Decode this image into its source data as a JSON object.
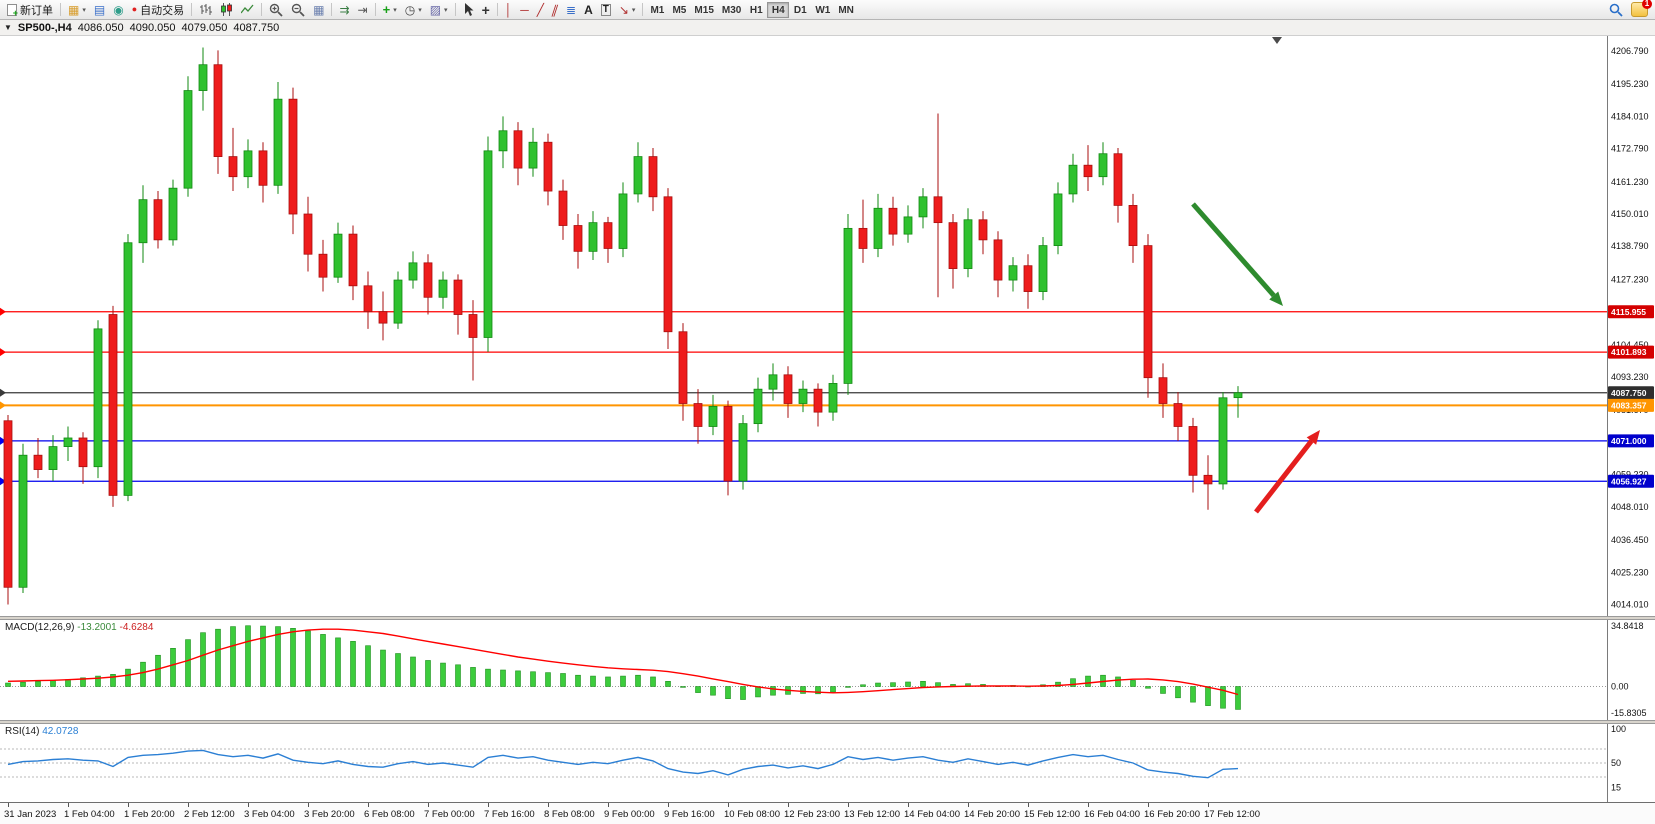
{
  "toolbar": {
    "new_order_label": "新订单",
    "autotrading_label": "自动交易",
    "timeframes": {
      "items": [
        "M1",
        "M5",
        "M15",
        "M30",
        "H1",
        "H4",
        "D1",
        "W1",
        "MN"
      ],
      "active": "H4"
    },
    "notification_badge": "1"
  },
  "icons": {
    "window_menu": "▼",
    "chart_window": "▦",
    "market_watch": "▤",
    "navigator": "◉",
    "autotrading_status": "●",
    "tile_windows": "▦",
    "auto_scroll": "⇉",
    "chart_shift": "⇥",
    "indicators_add": "+",
    "periods_clock": "◷",
    "templates": "▨",
    "crosshair": "+",
    "vertical_line": "│",
    "horizontal_line": "─",
    "trendline": "╱",
    "channel": "∥",
    "fibonacci": "≣",
    "text_tool": "A",
    "text_label": "T",
    "arrows_tool": "↘",
    "dropdown": "▾",
    "shift_marker": "▼"
  },
  "chart_header": {
    "symbol_period": "SP500-,H4",
    "open": "4086.050",
    "high": "4090.050",
    "low": "4079.050",
    "close": "4087.750"
  },
  "colors": {
    "bull": "#2fc12f",
    "bull_stroke": "#128912",
    "bear": "#ee1c1c",
    "bear_stroke": "#a80f0f",
    "macd_hist": "#3ccc3c",
    "macd_hist_stroke": "#1e8f1e",
    "macd_signal": "#ff0000",
    "rsi_line": "#2b7fd4",
    "axis_text": "#111111"
  },
  "levels": [
    {
      "price": 4115.955,
      "label": "4115.955",
      "color": "#ff0000",
      "badge": "#d40000",
      "width": 1.2
    },
    {
      "price": 4101.893,
      "label": "4101.893",
      "color": "#ff0000",
      "badge": "#d40000",
      "width": 1.2
    },
    {
      "price": 4087.75,
      "label": "4087.750",
      "color": "#3a3a3a",
      "badge": "#2e2e2e",
      "width": 1.2
    },
    {
      "price": 4083.357,
      "label": "4083.357",
      "color": "#ff9500",
      "badge": "#ff9500",
      "width": 2
    },
    {
      "price": 4071.0,
      "label": "4071.000",
      "color": "#0000ee",
      "badge": "#0000cc",
      "width": 1.3
    },
    {
      "price": 4056.927,
      "label": "4056.927",
      "color": "#0000ee",
      "badge": "#0000cc",
      "width": 1.3
    }
  ],
  "annotations": [
    {
      "name": "green-down-arrow",
      "color": "#2e8b2e",
      "from": [
        1193,
        168
      ],
      "to": [
        1283,
        270
      ]
    },
    {
      "name": "red-up-arrow",
      "color": "#e41e1e",
      "from": [
        1256,
        476
      ],
      "to": [
        1320,
        394
      ]
    }
  ],
  "shift_marker_x": 1277,
  "time_axis": {
    "labels": [
      "31 Jan 2023",
      "1 Feb 04:00",
      "1 Feb 20:00",
      "2 Feb 12:00",
      "3 Feb 04:00",
      "3 Feb 20:00",
      "6 Feb 08:00",
      "7 Feb 00:00",
      "7 Feb 16:00",
      "8 Feb 08:00",
      "9 Feb 00:00",
      "9 Feb 16:00",
      "10 Feb 08:00",
      "12 Feb 23:00",
      "13 Feb 12:00",
      "14 Feb 04:00",
      "14 Feb 20:00",
      "15 Feb 12:00",
      "16 Feb 04:00",
      "16 Feb 20:00",
      "17 Feb 12:00"
    ],
    "bars_per_label": 4
  },
  "indicators": {
    "macd": {
      "name": "MACD(12,26,9)",
      "value1": "-13.2001",
      "value2": "-4.6284",
      "axis": [
        "34.8418",
        "0.00",
        "-15.8305"
      ]
    },
    "rsi": {
      "name": "RSI(14)",
      "value": "42.0728",
      "axis": [
        "100",
        "50",
        "15"
      ],
      "levels": [
        70,
        50,
        30
      ]
    }
  },
  "chart_data": [
    {
      "type": "candlestick",
      "name": "SP500- H4",
      "y_range": [
        4010,
        4212
      ],
      "first_x": 8,
      "bar_spacing": 15,
      "axis_ticks": [
        "4206.790",
        "4195.230",
        "4184.010",
        "4172.790",
        "4161.230",
        "4150.010",
        "4138.790",
        "4127.230",
        "4115.670",
        "4104.450",
        "4093.230",
        "4081.670",
        "4070.450",
        "4059.230",
        "4048.010",
        "4036.450",
        "4025.230",
        "4014.010"
      ],
      "candles": [
        [
          4078,
          4080,
          4014,
          4020
        ],
        [
          4020,
          4070,
          4018,
          4066
        ],
        [
          4066,
          4072,
          4058,
          4061
        ],
        [
          4061,
          4073,
          4057,
          4069
        ],
        [
          4069,
          4076,
          4064,
          4072
        ],
        [
          4072,
          4074,
          4056,
          4062
        ],
        [
          4062,
          4113,
          4058,
          4110
        ],
        [
          4115,
          4118,
          4048,
          4052
        ],
        [
          4052,
          4143,
          4050,
          4140
        ],
        [
          4140,
          4160,
          4133,
          4155
        ],
        [
          4155,
          4158,
          4138,
          4141
        ],
        [
          4141,
          4162,
          4139,
          4159
        ],
        [
          4159,
          4198,
          4156,
          4193
        ],
        [
          4193,
          4208,
          4186,
          4202
        ],
        [
          4202,
          4207,
          4164,
          4170
        ],
        [
          4170,
          4180,
          4158,
          4163
        ],
        [
          4163,
          4176,
          4159,
          4172
        ],
        [
          4172,
          4175,
          4154,
          4160
        ],
        [
          4160,
          4196,
          4157,
          4190
        ],
        [
          4190,
          4194,
          4143,
          4150
        ],
        [
          4150,
          4156,
          4130,
          4136
        ],
        [
          4136,
          4141,
          4123,
          4128
        ],
        [
          4128,
          4147,
          4126,
          4143
        ],
        [
          4143,
          4146,
          4120,
          4125
        ],
        [
          4125,
          4130,
          4110,
          4116
        ],
        [
          4116,
          4123,
          4106,
          4112
        ],
        [
          4112,
          4130,
          4110,
          4127
        ],
        [
          4127,
          4137,
          4124,
          4133
        ],
        [
          4133,
          4136,
          4115,
          4121
        ],
        [
          4121,
          4130,
          4117,
          4127
        ],
        [
          4127,
          4129,
          4108,
          4115
        ],
        [
          4115,
          4120,
          4092,
          4107
        ],
        [
          4107,
          4177,
          4102,
          4172
        ],
        [
          4172,
          4184,
          4166,
          4179
        ],
        [
          4179,
          4182,
          4160,
          4166
        ],
        [
          4166,
          4180,
          4163,
          4175
        ],
        [
          4175,
          4178,
          4153,
          4158
        ],
        [
          4158,
          4162,
          4141,
          4146
        ],
        [
          4146,
          4150,
          4131,
          4137
        ],
        [
          4137,
          4151,
          4134,
          4147
        ],
        [
          4147,
          4149,
          4133,
          4138
        ],
        [
          4138,
          4161,
          4135,
          4157
        ],
        [
          4157,
          4175,
          4154,
          4170
        ],
        [
          4170,
          4173,
          4151,
          4156
        ],
        [
          4156,
          4159,
          4103,
          4109
        ],
        [
          4109,
          4112,
          4078,
          4084
        ],
        [
          4084,
          4089,
          4070,
          4076
        ],
        [
          4076,
          4087,
          4073,
          4083
        ],
        [
          4083,
          4085,
          4052,
          4057
        ],
        [
          4057,
          4080,
          4054,
          4077
        ],
        [
          4077,
          4093,
          4074,
          4089
        ],
        [
          4089,
          4098,
          4085,
          4094
        ],
        [
          4094,
          4097,
          4079,
          4084
        ],
        [
          4084,
          4092,
          4081,
          4089
        ],
        [
          4089,
          4091,
          4076,
          4081
        ],
        [
          4081,
          4094,
          4078,
          4091
        ],
        [
          4091,
          4150,
          4087,
          4145
        ],
        [
          4145,
          4155,
          4133,
          4138
        ],
        [
          4138,
          4157,
          4135,
          4152
        ],
        [
          4152,
          4156,
          4139,
          4143
        ],
        [
          4143,
          4153,
          4140,
          4149
        ],
        [
          4149,
          4159,
          4145,
          4156
        ],
        [
          4156,
          4185,
          4121,
          4147
        ],
        [
          4147,
          4150,
          4124,
          4131
        ],
        [
          4131,
          4152,
          4128,
          4148
        ],
        [
          4148,
          4151,
          4136,
          4141
        ],
        [
          4141,
          4144,
          4121,
          4127
        ],
        [
          4127,
          4135,
          4123,
          4132
        ],
        [
          4132,
          4136,
          4117,
          4123
        ],
        [
          4123,
          4142,
          4120,
          4139
        ],
        [
          4139,
          4161,
          4136,
          4157
        ],
        [
          4157,
          4171,
          4154,
          4167
        ],
        [
          4167,
          4174,
          4158,
          4163
        ],
        [
          4163,
          4175,
          4160,
          4171
        ],
        [
          4171,
          4173,
          4147,
          4153
        ],
        [
          4153,
          4157,
          4133,
          4139
        ],
        [
          4139,
          4143,
          4086,
          4093
        ],
        [
          4093,
          4098,
          4079,
          4084
        ],
        [
          4084,
          4088,
          4071,
          4076
        ],
        [
          4076,
          4079,
          4053,
          4059
        ],
        [
          4059,
          4066,
          4047,
          4056
        ],
        [
          4056,
          4088,
          4054,
          4086
        ],
        [
          4086.05,
          4090.05,
          4079.05,
          4087.75
        ]
      ]
    },
    {
      "type": "bar",
      "name": "MACD histogram",
      "y_range": [
        -15.8305,
        34.8418
      ],
      "values": [
        2,
        2.5,
        3,
        3.5,
        4,
        5,
        6,
        7,
        10,
        14,
        18,
        22,
        27,
        31,
        33,
        34.5,
        35,
        34.8,
        34.5,
        33.5,
        32,
        30,
        28,
        26,
        23.5,
        21,
        19,
        17,
        15,
        13.5,
        12.5,
        11,
        10,
        9.5,
        9,
        8.5,
        8,
        7.5,
        6.5,
        6,
        5.5,
        6,
        6.5,
        5.5,
        3,
        -0.5,
        -3.5,
        -5,
        -7,
        -7.5,
        -6,
        -5,
        -4.5,
        -4,
        -4.2,
        -3.2,
        -0.5,
        1,
        2,
        2.2,
        2.6,
        3,
        2.2,
        1.2,
        1.6,
        1.2,
        0.4,
        0.6,
        0.2,
        1,
        2.5,
        4.5,
        6,
        6.5,
        5.5,
        3.5,
        -1,
        -4,
        -6.5,
        -9,
        -11,
        -12.5,
        -13.2
      ],
      "signal": [
        3,
        3.2,
        3.4,
        3.6,
        3.9,
        4.3,
        4.8,
        5.5,
        6.5,
        8,
        10,
        12.5,
        15,
        18,
        21,
        23.5,
        26,
        28,
        30,
        31.5,
        32.5,
        33,
        33,
        32.5,
        31.5,
        30.5,
        29,
        27.5,
        26,
        24.5,
        23,
        21.5,
        20,
        18.5,
        17,
        15.8,
        14.6,
        13.5,
        12.5,
        11.6,
        10.8,
        10.2,
        9.8,
        9.4,
        8.6,
        7.4,
        6,
        4.4,
        2.8,
        1.2,
        -0.2,
        -1.4,
        -2.2,
        -2.8,
        -3.3,
        -3.6,
        -3.4,
        -3,
        -2.4,
        -1.8,
        -1.2,
        -0.6,
        -0.2,
        0,
        0.2,
        0.3,
        0.3,
        0.3,
        0.2,
        0.3,
        0.6,
        1.2,
        2,
        2.9,
        3.7,
        4.2,
        4.3,
        3.8,
        2.8,
        1.4,
        -0.4,
        -2.2,
        -4.6
      ]
    },
    {
      "type": "line",
      "name": "RSI",
      "y_range": [
        0,
        100
      ],
      "values": [
        48,
        52,
        53,
        55,
        56,
        54,
        53,
        45,
        58,
        61,
        62,
        64,
        67,
        68,
        62,
        59,
        61,
        57,
        63,
        54,
        51,
        49,
        53,
        48,
        45,
        44,
        49,
        52,
        48,
        50,
        47,
        44,
        58,
        61,
        57,
        59,
        54,
        51,
        48,
        51,
        49,
        54,
        58,
        53,
        42,
        37,
        35,
        39,
        33,
        41,
        45,
        47,
        43,
        46,
        42,
        48,
        59,
        55,
        58,
        54,
        57,
        59,
        54,
        51,
        56,
        52,
        48,
        51,
        47,
        53,
        58,
        62,
        59,
        61,
        55,
        50,
        40,
        37,
        35,
        31,
        29,
        41,
        42.07
      ]
    }
  ]
}
